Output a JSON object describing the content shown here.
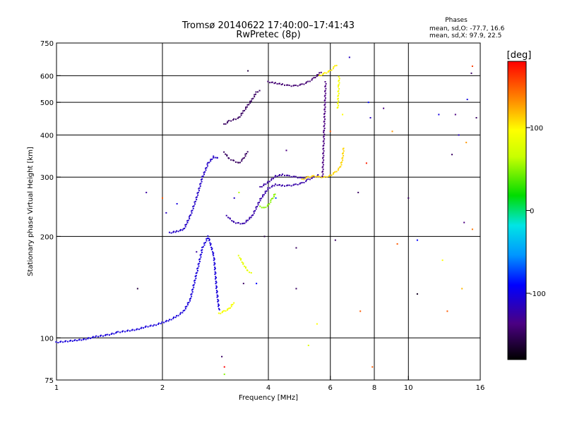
{
  "chart_data": {
    "type": "scatter",
    "title": "Tromsø 20140622 17:40:00–17:41:43",
    "subtitle": "RwPretec (8p)",
    "xlabel": "Frequency [MHz]",
    "ylabel": "Stationary phase Virtual Height [km]",
    "x_scale": "log",
    "y_scale": "log",
    "xlim": [
      1,
      16
    ],
    "ylim": [
      75,
      750
    ],
    "x_ticks": [
      1,
      2,
      4,
      6,
      8,
      10,
      16
    ],
    "y_ticks": [
      75,
      100,
      200,
      300,
      400,
      500,
      600,
      750
    ],
    "x_grid": [
      2,
      4,
      6,
      8,
      10
    ],
    "y_grid": [
      100,
      200,
      300,
      400,
      500,
      600
    ],
    "grid": true,
    "phases_info": {
      "header": "Phases",
      "line1": "mean, sd,O:  -77.7, 16.6",
      "line2": "mean, sd,X:   97.9, 22.5"
    },
    "colorbar": {
      "label": "[deg]",
      "range": [
        -180,
        180
      ],
      "ticks": [
        100,
        0,
        -100
      ]
    },
    "traces": [
      {
        "phase": -112,
        "points": [
          [
            1.0,
            97
          ],
          [
            1.1,
            98
          ],
          [
            1.2,
            99
          ],
          [
            1.3,
            101
          ],
          [
            1.4,
            102
          ],
          [
            1.5,
            104
          ],
          [
            1.6,
            105
          ],
          [
            1.7,
            106
          ],
          [
            1.8,
            108
          ],
          [
            1.9,
            109
          ],
          [
            2.0,
            111
          ],
          [
            2.1,
            113
          ],
          [
            2.2,
            116
          ],
          [
            2.3,
            120
          ],
          [
            2.4,
            130
          ],
          [
            2.5,
            155
          ],
          [
            2.6,
            185
          ],
          [
            2.7,
            200
          ],
          [
            2.8,
            175
          ],
          [
            2.85,
            140
          ],
          [
            2.9,
            120
          ]
        ]
      },
      {
        "phase": -118,
        "points": [
          [
            2.1,
            205
          ],
          [
            2.2,
            207
          ],
          [
            2.3,
            210
          ],
          [
            2.4,
            230
          ],
          [
            2.5,
            260
          ],
          [
            2.6,
            300
          ],
          [
            2.7,
            330
          ],
          [
            2.8,
            345
          ],
          [
            2.9,
            340
          ]
        ]
      },
      {
        "phase": -150,
        "points": [
          [
            3.0,
            430
          ],
          [
            3.1,
            440
          ],
          [
            3.2,
            445
          ],
          [
            3.3,
            450
          ],
          [
            3.4,
            470
          ],
          [
            3.5,
            490
          ],
          [
            3.6,
            510
          ],
          [
            3.7,
            535
          ],
          [
            3.8,
            545
          ]
        ]
      },
      {
        "phase": -150,
        "points": [
          [
            3.0,
            355
          ],
          [
            3.1,
            340
          ],
          [
            3.2,
            335
          ],
          [
            3.3,
            330
          ],
          [
            3.4,
            340
          ],
          [
            3.5,
            360
          ]
        ]
      },
      {
        "phase": -128,
        "points": [
          [
            3.05,
            230
          ],
          [
            3.2,
            220
          ],
          [
            3.4,
            218
          ],
          [
            3.6,
            230
          ],
          [
            3.8,
            258
          ],
          [
            4.0,
            278
          ],
          [
            4.2,
            285
          ],
          [
            4.4,
            283
          ],
          [
            4.6,
            283
          ],
          [
            4.8,
            285
          ],
          [
            5.0,
            288
          ],
          [
            5.2,
            295
          ],
          [
            5.4,
            300
          ],
          [
            5.6,
            305
          ]
        ]
      },
      {
        "phase": -130,
        "points": [
          [
            3.8,
            280
          ],
          [
            4.0,
            290
          ],
          [
            4.2,
            302
          ],
          [
            4.4,
            305
          ],
          [
            4.6,
            302
          ],
          [
            4.8,
            300
          ],
          [
            5.0,
            298
          ],
          [
            5.2,
            300
          ]
        ]
      },
      {
        "phase": -145,
        "points": [
          [
            4.0,
            575
          ],
          [
            4.2,
            570
          ],
          [
            4.4,
            565
          ],
          [
            4.6,
            560
          ],
          [
            4.8,
            560
          ],
          [
            5.0,
            565
          ],
          [
            5.2,
            575
          ],
          [
            5.4,
            590
          ],
          [
            5.6,
            610
          ],
          [
            5.7,
            620
          ]
        ]
      },
      {
        "phase": -140,
        "points": [
          [
            5.7,
            300
          ],
          [
            5.72,
            330
          ],
          [
            5.74,
            370
          ],
          [
            5.76,
            410
          ],
          [
            5.78,
            460
          ],
          [
            5.8,
            520
          ],
          [
            5.82,
            580
          ]
        ]
      },
      {
        "phase": 50,
        "points": [
          [
            3.8,
            245
          ],
          [
            3.9,
            243
          ],
          [
            4.0,
            248
          ],
          [
            4.1,
            258
          ],
          [
            4.2,
            270
          ]
        ]
      },
      {
        "phase": 85,
        "points": [
          [
            3.3,
            175
          ],
          [
            3.4,
            165
          ],
          [
            3.5,
            158
          ],
          [
            3.6,
            155
          ]
        ]
      },
      {
        "phase": 95,
        "points": [
          [
            2.9,
            118
          ],
          [
            3.0,
            120
          ],
          [
            3.1,
            122
          ],
          [
            3.2,
            128
          ]
        ]
      },
      {
        "phase": 112,
        "points": [
          [
            5.0,
            295
          ],
          [
            5.2,
            300
          ],
          [
            5.4,
            302
          ],
          [
            5.6,
            300
          ],
          [
            5.8,
            300
          ],
          [
            6.0,
            303
          ],
          [
            6.2,
            310
          ],
          [
            6.4,
            320
          ],
          [
            6.5,
            340
          ],
          [
            6.55,
            370
          ]
        ]
      },
      {
        "phase": 105,
        "points": [
          [
            5.6,
            600
          ],
          [
            5.8,
            610
          ],
          [
            6.0,
            620
          ],
          [
            6.2,
            640
          ],
          [
            6.3,
            650
          ]
        ]
      },
      {
        "phase": 95,
        "points": [
          [
            6.3,
            480
          ],
          [
            6.32,
            520
          ],
          [
            6.34,
            560
          ],
          [
            6.36,
            600
          ]
        ]
      }
    ],
    "scatter": [
      {
        "x": 1.7,
        "y": 140,
        "phase": -160
      },
      {
        "x": 1.8,
        "y": 270,
        "phase": -130
      },
      {
        "x": 2.0,
        "y": 260,
        "phase": 150
      },
      {
        "x": 2.05,
        "y": 235,
        "phase": -120
      },
      {
        "x": 2.2,
        "y": 250,
        "phase": -110
      },
      {
        "x": 2.5,
        "y": 180,
        "phase": -130
      },
      {
        "x": 2.95,
        "y": 88,
        "phase": -150
      },
      {
        "x": 3.0,
        "y": 78,
        "phase": 50
      },
      {
        "x": 3.0,
        "y": 82,
        "phase": 180
      },
      {
        "x": 3.2,
        "y": 260,
        "phase": -120
      },
      {
        "x": 3.3,
        "y": 270,
        "phase": 60
      },
      {
        "x": 3.4,
        "y": 145,
        "phase": -150
      },
      {
        "x": 3.5,
        "y": 620,
        "phase": -160
      },
      {
        "x": 3.7,
        "y": 145,
        "phase": -100
      },
      {
        "x": 3.9,
        "y": 200,
        "phase": -160
      },
      {
        "x": 4.2,
        "y": 260,
        "phase": -80
      },
      {
        "x": 4.5,
        "y": 360,
        "phase": -140
      },
      {
        "x": 4.8,
        "y": 185,
        "phase": -150
      },
      {
        "x": 4.8,
        "y": 140,
        "phase": -150
      },
      {
        "x": 5.2,
        "y": 95,
        "phase": 80
      },
      {
        "x": 5.5,
        "y": 110,
        "phase": 100
      },
      {
        "x": 6.0,
        "y": 410,
        "phase": 150
      },
      {
        "x": 6.2,
        "y": 195,
        "phase": -150
      },
      {
        "x": 6.5,
        "y": 460,
        "phase": 100
      },
      {
        "x": 6.8,
        "y": 680,
        "phase": -120
      },
      {
        "x": 7.2,
        "y": 270,
        "phase": -150
      },
      {
        "x": 7.3,
        "y": 120,
        "phase": 150
      },
      {
        "x": 7.6,
        "y": 330,
        "phase": 170
      },
      {
        "x": 7.7,
        "y": 500,
        "phase": -100
      },
      {
        "x": 7.8,
        "y": 450,
        "phase": -120
      },
      {
        "x": 7.9,
        "y": 82,
        "phase": 150
      },
      {
        "x": 8.5,
        "y": 480,
        "phase": -140
      },
      {
        "x": 9.0,
        "y": 410,
        "phase": 130
      },
      {
        "x": 9.3,
        "y": 190,
        "phase": 150
      },
      {
        "x": 10.0,
        "y": 260,
        "phase": -150
      },
      {
        "x": 10.6,
        "y": 135,
        "phase": -170
      },
      {
        "x": 10.6,
        "y": 195,
        "phase": -100
      },
      {
        "x": 12.2,
        "y": 460,
        "phase": -110
      },
      {
        "x": 12.5,
        "y": 170,
        "phase": 100
      },
      {
        "x": 12.9,
        "y": 120,
        "phase": 150
      },
      {
        "x": 13.3,
        "y": 350,
        "phase": -150
      },
      {
        "x": 13.6,
        "y": 460,
        "phase": -140
      },
      {
        "x": 13.9,
        "y": 400,
        "phase": -120
      },
      {
        "x": 14.2,
        "y": 140,
        "phase": 120
      },
      {
        "x": 14.4,
        "y": 220,
        "phase": -140
      },
      {
        "x": 14.7,
        "y": 510,
        "phase": -110
      },
      {
        "x": 15.1,
        "y": 610,
        "phase": -150
      },
      {
        "x": 15.2,
        "y": 640,
        "phase": 160
      },
      {
        "x": 15.2,
        "y": 210,
        "phase": 140
      },
      {
        "x": 15.6,
        "y": 450,
        "phase": -150
      },
      {
        "x": 14.6,
        "y": 380,
        "phase": 130
      }
    ]
  }
}
